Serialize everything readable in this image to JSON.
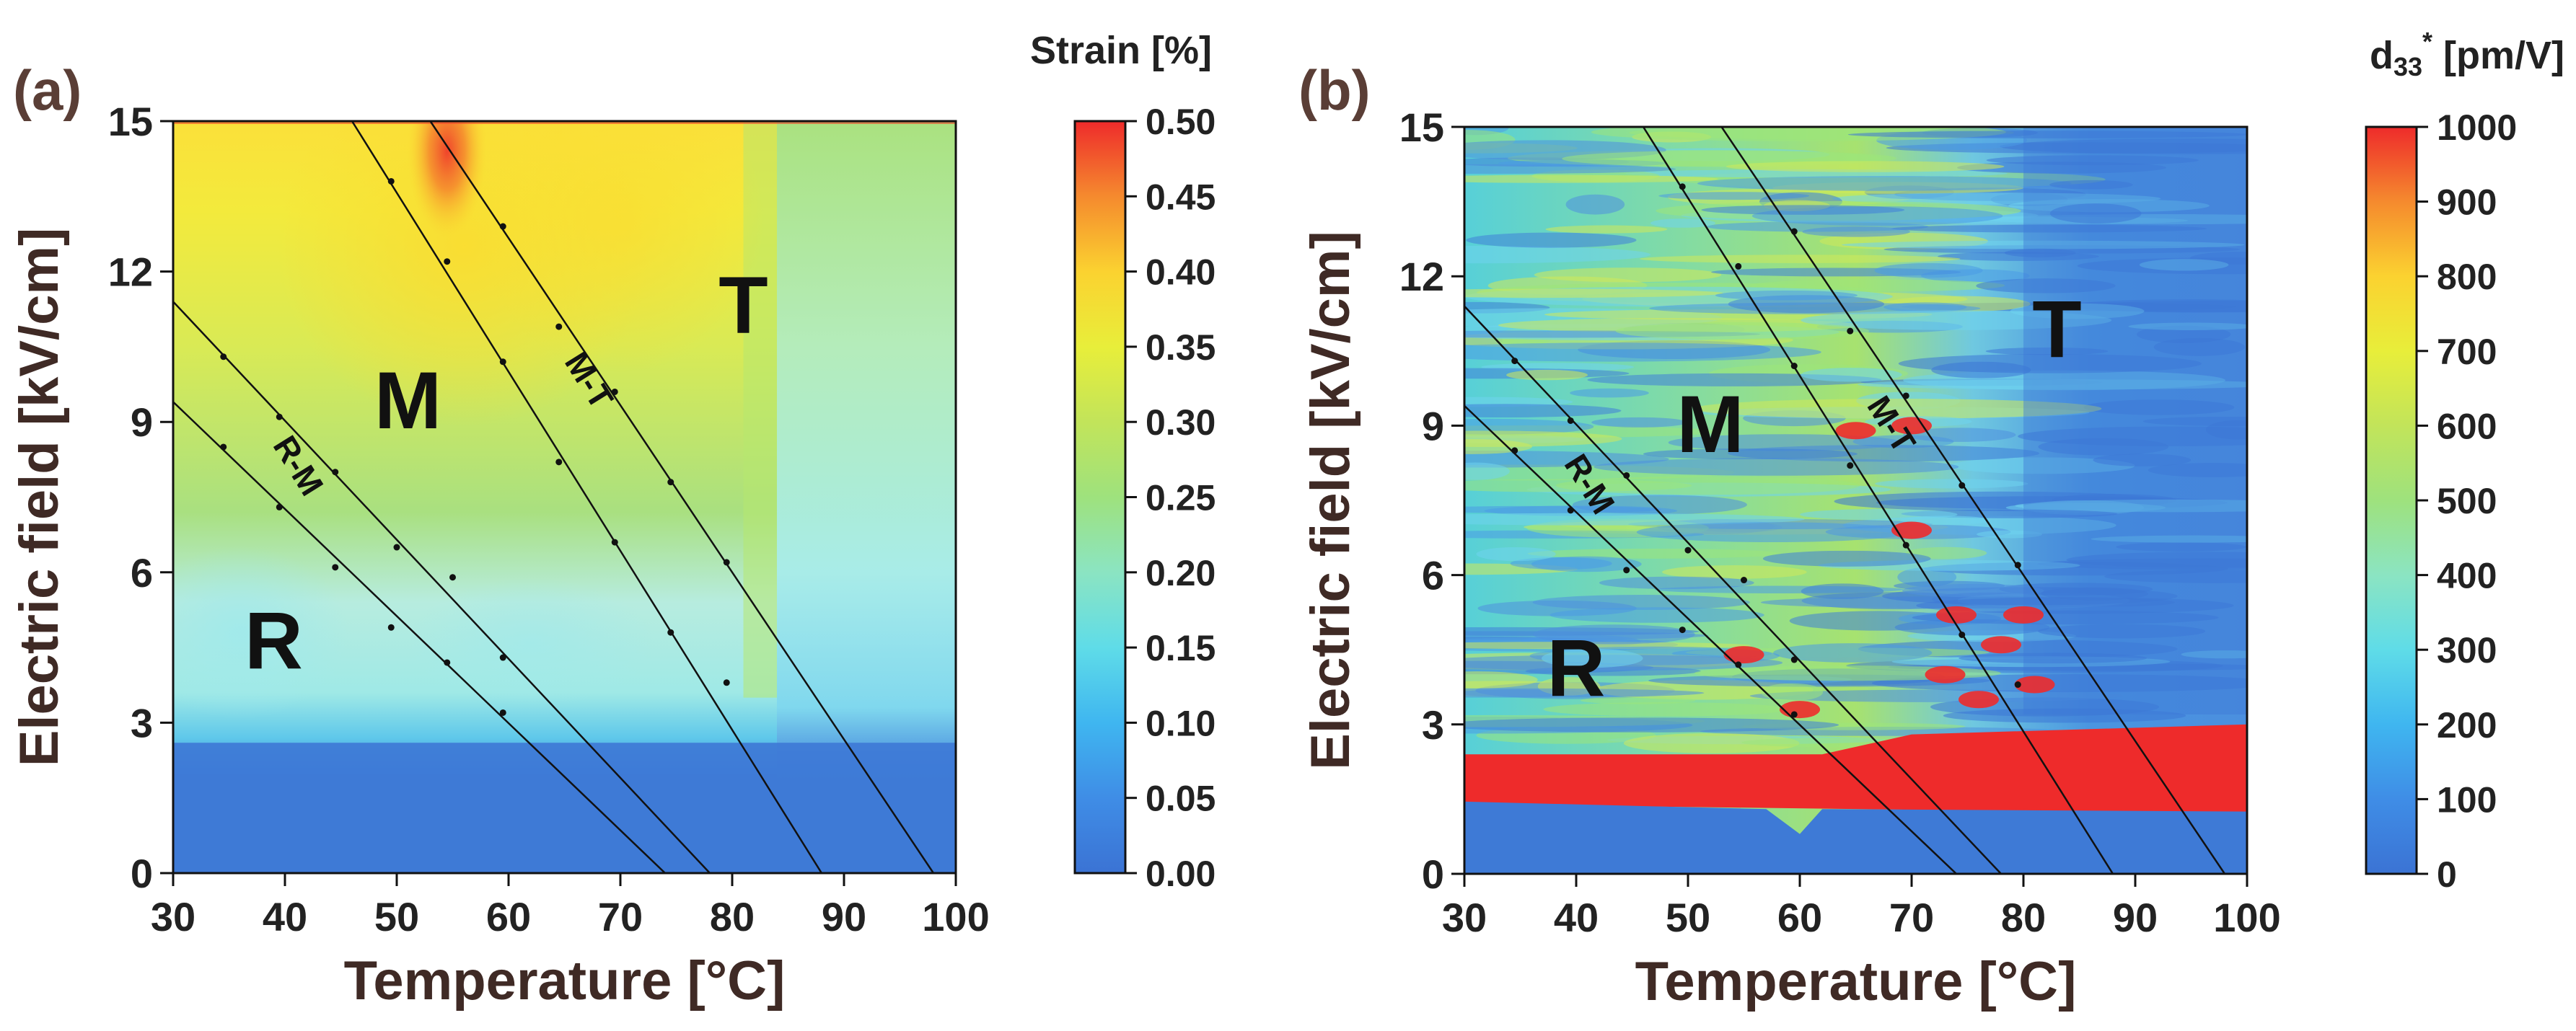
{
  "chart_data": [
    {
      "type": "heatmap",
      "panel_label": "(a)",
      "xlabel": "Temperature [°C]",
      "ylabel": "Electric field [kV/cm]",
      "xlim": [
        30,
        100
      ],
      "ylim": [
        0,
        15
      ],
      "x_ticks": [
        "30",
        "40",
        "50",
        "60",
        "70",
        "80",
        "90",
        "100"
      ],
      "y_ticks": [
        "0",
        "3",
        "6",
        "9",
        "12",
        "15"
      ],
      "colorbar": {
        "title": "Strain [%]",
        "range": [
          0,
          0.5
        ],
        "labels": [
          "0.00",
          "0.05",
          "0.10",
          "0.15",
          "0.20",
          "0.25",
          "0.30",
          "0.35",
          "0.40",
          "0.45",
          "0.50"
        ]
      },
      "phase_regions": [
        {
          "label": "R",
          "temperature": 39,
          "field": 4.5
        },
        {
          "label": "M",
          "temperature": 51,
          "field": 9.3
        },
        {
          "label": "T",
          "temperature": 81,
          "field": 11.2
        }
      ],
      "boundaries": [
        {
          "label": "R-M",
          "temperature": [
            30,
            74
          ],
          "field": [
            9.4,
            0
          ]
        },
        {
          "label": "R-M",
          "temperature": [
            30,
            78
          ],
          "field": [
            11.4,
            0
          ]
        },
        {
          "label": "M-T",
          "temperature": [
            46,
            88
          ],
          "field": [
            15,
            0
          ]
        },
        {
          "label": "M-T",
          "temperature": [
            53,
            98
          ],
          "field": [
            15,
            0
          ]
        }
      ],
      "boundary_labels": [
        {
          "text": "R-M",
          "temperature": 41,
          "field": 8.1
        },
        {
          "text": "M-T",
          "temperature": 67,
          "field": 9.8
        }
      ],
      "markers": [
        {
          "temperature": 34.5,
          "field": 10.3
        },
        {
          "temperature": 39.5,
          "field": 9.1
        },
        {
          "temperature": 44.5,
          "field": 8.0
        },
        {
          "temperature": 50.0,
          "field": 6.5
        },
        {
          "temperature": 55.0,
          "field": 5.9
        },
        {
          "temperature": 59.5,
          "field": 4.3
        },
        {
          "temperature": 34.5,
          "field": 8.5
        },
        {
          "temperature": 39.5,
          "field": 7.3
        },
        {
          "temperature": 44.5,
          "field": 6.1
        },
        {
          "temperature": 49.5,
          "field": 4.9
        },
        {
          "temperature": 54.5,
          "field": 4.2
        },
        {
          "temperature": 59.5,
          "field": 3.2
        },
        {
          "temperature": 49.5,
          "field": 13.8
        },
        {
          "temperature": 54.5,
          "field": 12.2
        },
        {
          "temperature": 59.5,
          "field": 10.2
        },
        {
          "temperature": 64.5,
          "field": 8.2
        },
        {
          "temperature": 69.5,
          "field": 6.6
        },
        {
          "temperature": 74.5,
          "field": 4.8
        },
        {
          "temperature": 79.5,
          "field": 3.8
        },
        {
          "temperature": 59.5,
          "field": 12.9
        },
        {
          "temperature": 64.5,
          "field": 10.9
        },
        {
          "temperature": 69.5,
          "field": 9.6
        },
        {
          "temperature": 74.5,
          "field": 7.8
        },
        {
          "temperature": 79.5,
          "field": 6.2
        }
      ]
    },
    {
      "type": "heatmap",
      "panel_label": "(b)",
      "xlabel": "Temperature [°C]",
      "ylabel": "Electric field [kV/cm]",
      "xlim": [
        30,
        100
      ],
      "ylim": [
        0,
        15
      ],
      "x_ticks": [
        "30",
        "40",
        "50",
        "60",
        "70",
        "80",
        "90",
        "100"
      ],
      "y_ticks": [
        "0",
        "3",
        "6",
        "9",
        "12",
        "15"
      ],
      "colorbar": {
        "title_main": "d",
        "title_sub": "33",
        "title_sup": "*",
        "title_unit": " [pm/V]",
        "range": [
          0,
          1000
        ],
        "labels": [
          "0",
          "100",
          "200",
          "300",
          "400",
          "500",
          "600",
          "700",
          "800",
          "900",
          "1000"
        ]
      },
      "phase_regions": [
        {
          "label": "R",
          "temperature": 40,
          "field": 4.0
        },
        {
          "label": "M",
          "temperature": 52,
          "field": 8.9
        },
        {
          "label": "T",
          "temperature": 83,
          "field": 10.8
        }
      ],
      "boundaries": [
        {
          "label": "R-M",
          "temperature": [
            30,
            74
          ],
          "field": [
            9.4,
            0
          ]
        },
        {
          "label": "R-M",
          "temperature": [
            30,
            78
          ],
          "field": [
            11.4,
            0
          ]
        },
        {
          "label": "M-T",
          "temperature": [
            46,
            88
          ],
          "field": [
            15,
            0
          ]
        },
        {
          "label": "M-T",
          "temperature": [
            53,
            98
          ],
          "field": [
            15,
            0
          ]
        }
      ],
      "boundary_labels": [
        {
          "text": "R-M",
          "temperature": 41,
          "field": 7.8
        },
        {
          "text": "M-T",
          "temperature": 68,
          "field": 9.0
        }
      ],
      "markers": [
        {
          "temperature": 34.5,
          "field": 10.3
        },
        {
          "temperature": 39.5,
          "field": 9.1
        },
        {
          "temperature": 44.5,
          "field": 8.0
        },
        {
          "temperature": 50.0,
          "field": 6.5
        },
        {
          "temperature": 55.0,
          "field": 5.9
        },
        {
          "temperature": 59.5,
          "field": 4.3
        },
        {
          "temperature": 34.5,
          "field": 8.5
        },
        {
          "temperature": 39.5,
          "field": 7.3
        },
        {
          "temperature": 44.5,
          "field": 6.1
        },
        {
          "temperature": 49.5,
          "field": 4.9
        },
        {
          "temperature": 54.5,
          "field": 4.2
        },
        {
          "temperature": 59.5,
          "field": 3.2
        },
        {
          "temperature": 49.5,
          "field": 13.8
        },
        {
          "temperature": 54.5,
          "field": 12.2
        },
        {
          "temperature": 59.5,
          "field": 10.2
        },
        {
          "temperature": 64.5,
          "field": 8.2
        },
        {
          "temperature": 69.5,
          "field": 6.6
        },
        {
          "temperature": 74.5,
          "field": 4.8
        },
        {
          "temperature": 79.5,
          "field": 3.8
        },
        {
          "temperature": 59.5,
          "field": 12.9
        },
        {
          "temperature": 64.5,
          "field": 10.9
        },
        {
          "temperature": 69.5,
          "field": 9.6
        },
        {
          "temperature": 74.5,
          "field": 7.8
        },
        {
          "temperature": 79.5,
          "field": 6.2
        }
      ]
    }
  ]
}
